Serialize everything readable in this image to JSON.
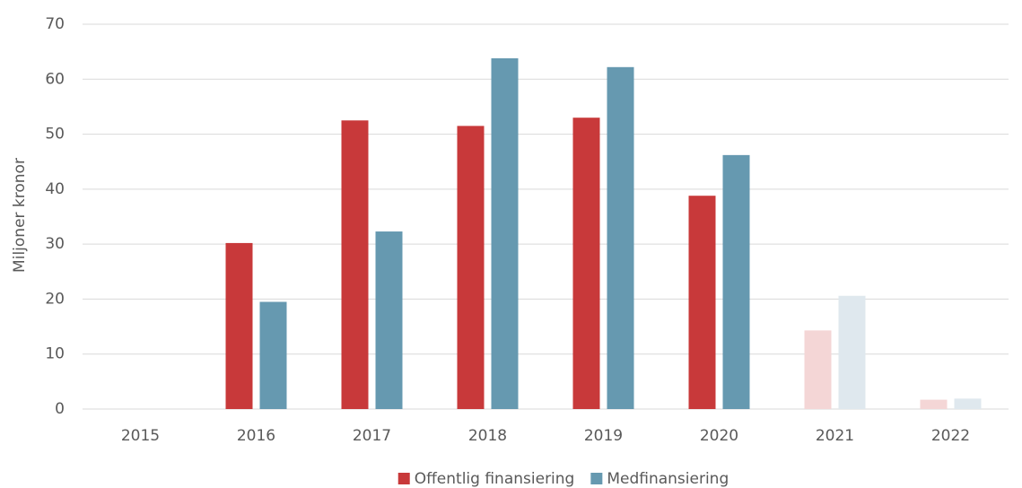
{
  "chart_data": {
    "type": "bar",
    "y_label": "Miljoner kronor",
    "categories": [
      "2015",
      "2016",
      "2017",
      "2018",
      "2019",
      "2020",
      "2021",
      "2022"
    ],
    "series": [
      {
        "name": "Offentlig finansiering",
        "color": "#c8393a",
        "colors": [
          "#c8393a",
          "#c8393a",
          "#c8393a",
          "#c8393a",
          "#c8393a",
          "#c8393a",
          "#f4d6d6",
          "#f4d6d6"
        ],
        "values": [
          0,
          30.2,
          52.5,
          51.5,
          53,
          38.8,
          14.3,
          1.7
        ]
      },
      {
        "name": "Medfinansiering",
        "color": "#6699b0",
        "colors": [
          "#6699b0",
          "#6699b0",
          "#6699b0",
          "#6699b0",
          "#6699b0",
          "#6699b0",
          "#dfe8ee",
          "#dfe8ee"
        ],
        "values": [
          0,
          19.5,
          32.3,
          63.8,
          62.2,
          46.2,
          20.6,
          1.9
        ]
      }
    ],
    "ylim": [
      0,
      70
    ],
    "yticks": [
      0,
      10,
      20,
      30,
      40,
      50,
      60,
      70
    ],
    "grid": true,
    "legend": "bottom"
  }
}
